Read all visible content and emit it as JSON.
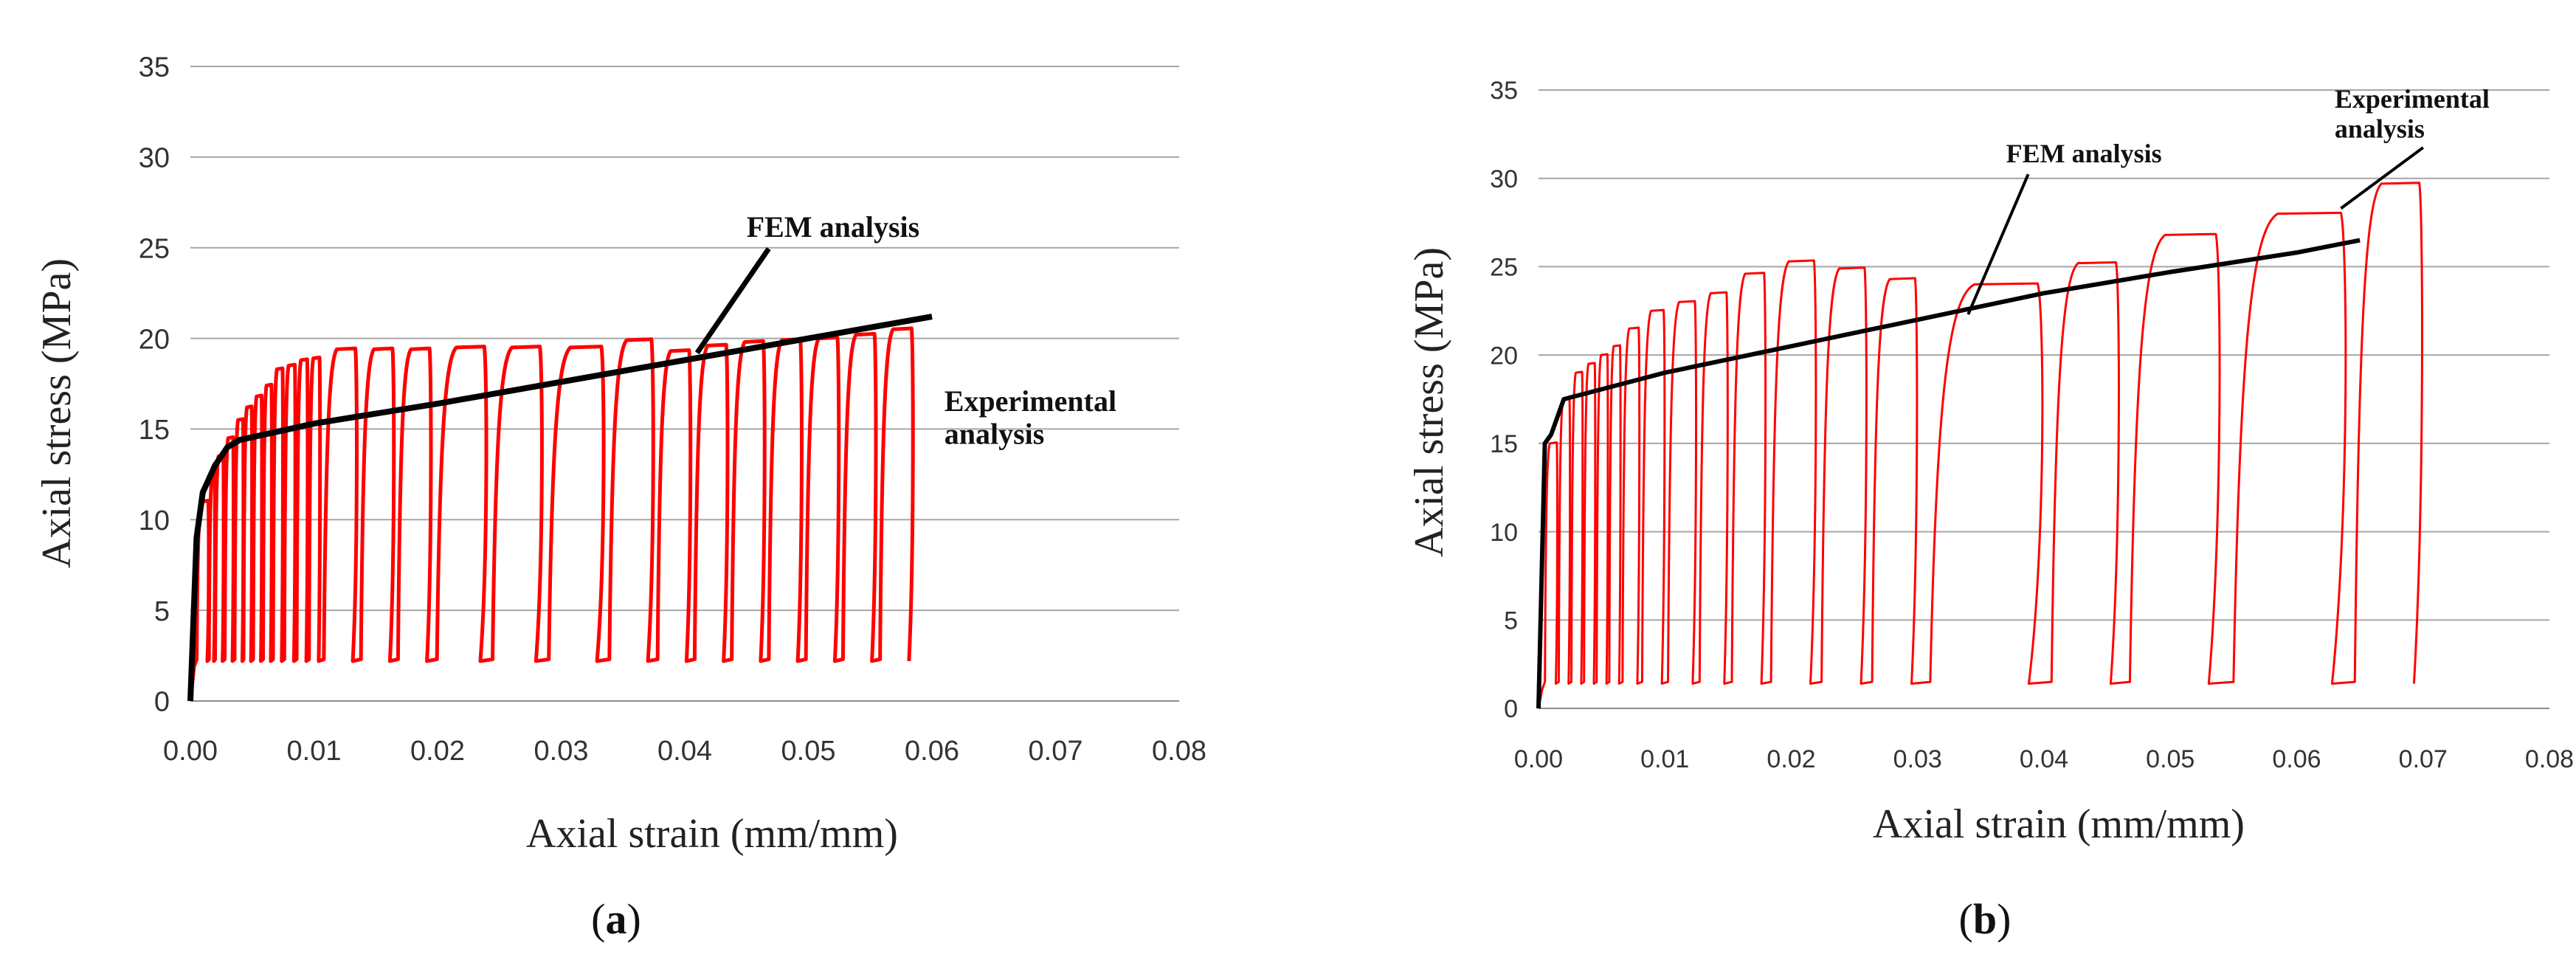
{
  "chart_data": [
    {
      "type": "line",
      "panel_label": "a",
      "xlabel": "Axial strain (mm/mm)",
      "ylabel": "Axial stress (MPa)",
      "xlim": [
        0,
        0.08
      ],
      "ylim": [
        0,
        35
      ],
      "x_ticks": [
        "0.00",
        "0.01",
        "0.02",
        "0.03",
        "0.04",
        "0.05",
        "0.06",
        "0.07",
        "0.08"
      ],
      "y_ticks": [
        "0",
        "5",
        "10",
        "15",
        "20",
        "25",
        "30",
        "35"
      ],
      "grid": "horizontal",
      "colors": {
        "fem": "#000000",
        "experimental": "#ff0000",
        "grid": "#a6a6a6"
      },
      "series": [
        {
          "name": "FEM analysis",
          "x": [
            0,
            0.0005,
            0.001,
            0.002,
            0.003,
            0.004,
            0.01,
            0.02,
            0.03,
            0.04,
            0.05,
            0.06
          ],
          "y": [
            0,
            9,
            11.5,
            13,
            14,
            14.4,
            15.3,
            16.4,
            17.6,
            18.8,
            20,
            21.2
          ]
        },
        {
          "name": "Experimental analysis",
          "cycles": [
            {
              "strain": 0.0015,
              "peak": 11
            },
            {
              "strain": 0.002,
              "peak": 12.5
            },
            {
              "strain": 0.0027,
              "peak": 13.5
            },
            {
              "strain": 0.0035,
              "peak": 14.5
            },
            {
              "strain": 0.0043,
              "peak": 15.5
            },
            {
              "strain": 0.005,
              "peak": 16.2
            },
            {
              "strain": 0.0058,
              "peak": 16.8
            },
            {
              "strain": 0.0066,
              "peak": 17.4
            },
            {
              "strain": 0.0075,
              "peak": 18.3
            },
            {
              "strain": 0.0085,
              "peak": 18.5
            },
            {
              "strain": 0.0095,
              "peak": 18.8
            },
            {
              "strain": 0.0105,
              "peak": 18.9
            },
            {
              "strain": 0.0135,
              "peak": 19.4
            },
            {
              "strain": 0.0165,
              "peak": 19.4
            },
            {
              "strain": 0.0195,
              "peak": 19.4
            },
            {
              "strain": 0.024,
              "peak": 19.5
            },
            {
              "strain": 0.0285,
              "peak": 19.5
            },
            {
              "strain": 0.0335,
              "peak": 19.5
            },
            {
              "strain": 0.0375,
              "peak": 19.9
            },
            {
              "strain": 0.0405,
              "peak": 19.3
            },
            {
              "strain": 0.0435,
              "peak": 19.6
            },
            {
              "strain": 0.0465,
              "peak": 19.8
            },
            {
              "strain": 0.0495,
              "peak": 19.9
            },
            {
              "strain": 0.0525,
              "peak": 20.0
            },
            {
              "strain": 0.0555,
              "peak": 20.2
            },
            {
              "strain": 0.0585,
              "peak": 20.5
            }
          ]
        }
      ],
      "annotations": [
        {
          "text": "FEM analysis",
          "x": 0.045,
          "y": 25.6,
          "point_x": 0.041,
          "point_y": 19.2
        },
        {
          "text": [
            "Experimental",
            "analysis"
          ],
          "x": 0.061,
          "y": 16.0
        }
      ]
    },
    {
      "type": "line",
      "panel_label": "b",
      "xlabel": "Axial strain (mm/mm)",
      "ylabel": "Axial stress (MPa)",
      "xlim": [
        0,
        0.08
      ],
      "ylim": [
        0,
        35
      ],
      "x_ticks": [
        "0.00",
        "0.01",
        "0.02",
        "0.03",
        "0.04",
        "0.05",
        "0.06",
        "0.07",
        "0.08"
      ],
      "y_ticks": [
        "0",
        "5",
        "10",
        "15",
        "20",
        "25",
        "30",
        "35"
      ],
      "grid": "horizontal",
      "colors": {
        "fem": "#000000",
        "experimental": "#ff0000",
        "grid": "#a6a6a6"
      },
      "series": [
        {
          "name": "FEM analysis",
          "x": [
            0,
            0.0005,
            0.001,
            0.002,
            0.01,
            0.02,
            0.03,
            0.04,
            0.05,
            0.06,
            0.065
          ],
          "y": [
            0,
            15,
            15.5,
            17.5,
            19,
            20.5,
            22,
            23.5,
            24.7,
            25.8,
            26.5
          ]
        },
        {
          "name": "Experimental analysis",
          "cycles": [
            {
              "strain": 0.0015,
              "peak": 15
            },
            {
              "strain": 0.0025,
              "peak": 17.5
            },
            {
              "strain": 0.0035,
              "peak": 19
            },
            {
              "strain": 0.0045,
              "peak": 19.5
            },
            {
              "strain": 0.0055,
              "peak": 20
            },
            {
              "strain": 0.0065,
              "peak": 20.5
            },
            {
              "strain": 0.008,
              "peak": 21.5
            },
            {
              "strain": 0.01,
              "peak": 22.5
            },
            {
              "strain": 0.0125,
              "peak": 23
            },
            {
              "strain": 0.015,
              "peak": 23.5
            },
            {
              "strain": 0.018,
              "peak": 24.6
            },
            {
              "strain": 0.022,
              "peak": 25.3
            },
            {
              "strain": 0.026,
              "peak": 24.9
            },
            {
              "strain": 0.03,
              "peak": 24.3
            },
            {
              "strain": 0.04,
              "peak": 24
            },
            {
              "strain": 0.046,
              "peak": 25.2
            },
            {
              "strain": 0.054,
              "peak": 26.8
            },
            {
              "strain": 0.064,
              "peak": 28
            },
            {
              "strain": 0.07,
              "peak": 29.7
            }
          ]
        }
      ],
      "annotations": [
        {
          "text": "FEM analysis",
          "x": 0.037,
          "y": 30.9,
          "point_x": 0.034,
          "point_y": 22.3
        },
        {
          "text": [
            "Experimental",
            "analysis"
          ],
          "x": 0.063,
          "y": 34.0,
          "point_x": 0.0635,
          "point_y": 28.3
        }
      ]
    }
  ]
}
